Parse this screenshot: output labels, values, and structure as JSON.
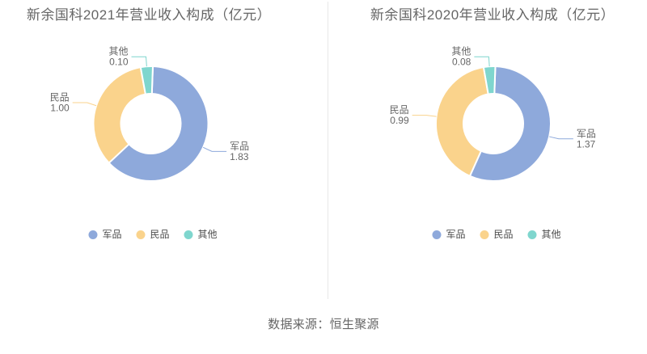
{
  "chart_data": [
    {
      "type": "pie",
      "title": "新余国科2021年营业收入构成（亿元）",
      "categories": [
        "军品",
        "民品",
        "其他"
      ],
      "values": [
        1.83,
        1.0,
        0.1
      ],
      "value_labels": [
        "1.83",
        "1.00",
        "0.10"
      ],
      "colors": [
        "#8EA9DB",
        "#FAD38C",
        "#7FD6CE"
      ],
      "legend": [
        "军品",
        "民品",
        "其他"
      ],
      "legend_position": "bottom",
      "donut": true
    },
    {
      "type": "pie",
      "title": "新余国科2020年营业收入构成（亿元）",
      "categories": [
        "军品",
        "民品",
        "其他"
      ],
      "values": [
        1.37,
        0.99,
        0.08
      ],
      "value_labels": [
        "1.37",
        "0.99",
        "0.08"
      ],
      "colors": [
        "#8EA9DB",
        "#FAD38C",
        "#7FD6CE"
      ],
      "legend": [
        "军品",
        "民品",
        "其他"
      ],
      "legend_position": "bottom",
      "donut": true
    }
  ],
  "source_note": "数据来源：恒生聚源"
}
